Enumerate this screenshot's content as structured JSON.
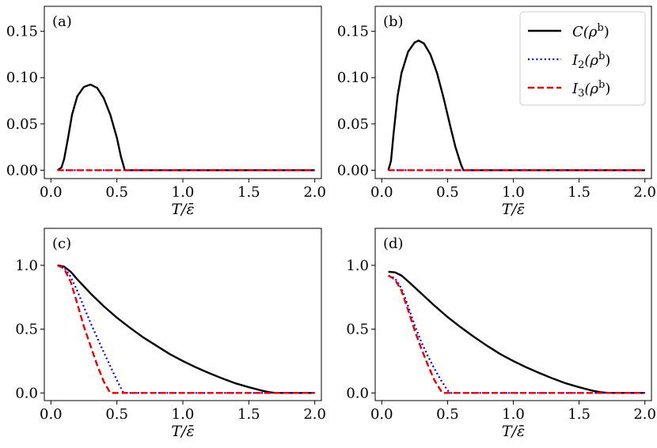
{
  "chart_data": [
    {
      "panel_label": "(a)",
      "type": "line",
      "xlabel": "T/ε̄",
      "ylabel": "",
      "xlim": [
        -0.05,
        2.05
      ],
      "ylim": [
        -0.009,
        0.177
      ],
      "xticks": [
        0.0,
        0.5,
        1.0,
        1.5,
        2.0
      ],
      "xtick_labels": [
        "0.0",
        "0.5",
        "1.0",
        "1.5",
        "2.0"
      ],
      "yticks": [
        0.0,
        0.05,
        0.1,
        0.15
      ],
      "ytick_labels": [
        "0.00",
        "0.05",
        "0.10",
        "0.15"
      ],
      "series": [
        {
          "name": "C",
          "color": "#000000",
          "style": "solid",
          "x": [
            0.05,
            0.08,
            0.1,
            0.13,
            0.16,
            0.2,
            0.25,
            0.3,
            0.35,
            0.4,
            0.45,
            0.5,
            0.53,
            0.56,
            0.6,
            1.0,
            1.5,
            2.0
          ],
          "y": [
            0.0,
            0.003,
            0.012,
            0.035,
            0.06,
            0.08,
            0.09,
            0.0925,
            0.089,
            0.078,
            0.06,
            0.035,
            0.015,
            0.0,
            0.0,
            0.0,
            0.0,
            0.0
          ]
        },
        {
          "name": "I2",
          "color": "#0000ee",
          "style": "dotted",
          "x": [
            0.05,
            2.0
          ],
          "y": [
            0.0,
            0.0
          ]
        },
        {
          "name": "I3",
          "color": "#ee0000",
          "style": "dashed",
          "x": [
            0.05,
            2.0
          ],
          "y": [
            0.0,
            0.0
          ]
        }
      ]
    },
    {
      "panel_label": "(b)",
      "type": "line",
      "xlabel": "T/ε̄",
      "ylabel": "",
      "xlim": [
        -0.05,
        2.05
      ],
      "ylim": [
        -0.009,
        0.177
      ],
      "xticks": [
        0.0,
        0.5,
        1.0,
        1.5,
        2.0
      ],
      "xtick_labels": [
        "0.0",
        "0.5",
        "1.0",
        "1.5",
        "2.0"
      ],
      "yticks": [
        0.0,
        0.05,
        0.1,
        0.15
      ],
      "ytick_labels": [
        "0.00",
        "0.05",
        "0.10",
        "0.15"
      ],
      "series": [
        {
          "name": "C",
          "color": "#000000",
          "style": "solid",
          "x": [
            0.05,
            0.07,
            0.09,
            0.12,
            0.15,
            0.2,
            0.25,
            0.28,
            0.32,
            0.37,
            0.42,
            0.47,
            0.52,
            0.56,
            0.6,
            0.62,
            1.0,
            1.5,
            2.0
          ],
          "y": [
            0.0,
            0.01,
            0.04,
            0.08,
            0.105,
            0.128,
            0.138,
            0.14,
            0.137,
            0.125,
            0.105,
            0.078,
            0.048,
            0.025,
            0.007,
            0.0,
            0.0,
            0.0,
            0.0
          ]
        },
        {
          "name": "I2",
          "color": "#0000ee",
          "style": "dotted",
          "x": [
            0.05,
            2.0
          ],
          "y": [
            0.0,
            0.0
          ]
        },
        {
          "name": "I3",
          "color": "#ee0000",
          "style": "dashed",
          "x": [
            0.05,
            2.0
          ],
          "y": [
            0.0,
            0.0
          ]
        }
      ],
      "legend": {
        "position": "top-right",
        "entries": [
          {
            "series": "C",
            "color": "#000000",
            "style": "solid",
            "main": "C",
            "sub": "",
            "arg": "(ρ",
            "sup": "b",
            "close": ")"
          },
          {
            "series": "I2",
            "color": "#0000ee",
            "style": "dotted",
            "main": "I",
            "sub": "2",
            "arg": "(ρ",
            "sup": "b",
            "close": ")"
          },
          {
            "series": "I3",
            "color": "#ee0000",
            "style": "dashed",
            "main": "I",
            "sub": "3",
            "arg": "(ρ",
            "sup": "b",
            "close": ")"
          }
        ]
      }
    },
    {
      "panel_label": "(c)",
      "type": "line",
      "xlabel": "T/ε̄",
      "ylabel": "",
      "xlim": [
        -0.05,
        2.05
      ],
      "ylim": [
        -0.06,
        1.29
      ],
      "xticks": [
        0.0,
        0.5,
        1.0,
        1.5,
        2.0
      ],
      "xtick_labels": [
        "0.0",
        "0.5",
        "1.0",
        "1.5",
        "2.0"
      ],
      "yticks": [
        0.0,
        0.5,
        1.0
      ],
      "ytick_labels": [
        "0.0",
        "0.5",
        "1.0"
      ],
      "series": [
        {
          "name": "C",
          "color": "#000000",
          "style": "solid",
          "x": [
            0.05,
            0.1,
            0.15,
            0.2,
            0.3,
            0.4,
            0.5,
            0.6,
            0.7,
            0.8,
            0.9,
            1.0,
            1.1,
            1.2,
            1.3,
            1.4,
            1.5,
            1.6,
            1.65,
            1.7,
            2.0
          ],
          "y": [
            1.0,
            0.99,
            0.95,
            0.89,
            0.78,
            0.68,
            0.59,
            0.51,
            0.435,
            0.37,
            0.305,
            0.25,
            0.2,
            0.155,
            0.113,
            0.075,
            0.045,
            0.018,
            0.007,
            0.0,
            0.0
          ]
        },
        {
          "name": "I2",
          "color": "#0000ee",
          "style": "dotted",
          "x": [
            0.05,
            0.1,
            0.15,
            0.2,
            0.3,
            0.4,
            0.5,
            0.55,
            2.0
          ],
          "y": [
            1.0,
            0.985,
            0.91,
            0.8,
            0.55,
            0.32,
            0.1,
            0.0,
            0.0
          ]
        },
        {
          "name": "I3",
          "color": "#ee0000",
          "style": "dashed",
          "x": [
            0.05,
            0.1,
            0.15,
            0.2,
            0.25,
            0.3,
            0.35,
            0.4,
            0.45,
            2.0
          ],
          "y": [
            1.0,
            0.975,
            0.87,
            0.7,
            0.52,
            0.37,
            0.22,
            0.09,
            0.0,
            0.0
          ]
        }
      ]
    },
    {
      "panel_label": "(d)",
      "type": "line",
      "xlabel": "T/ε̄",
      "ylabel": "",
      "xlim": [
        -0.05,
        2.05
      ],
      "ylim": [
        -0.06,
        1.29
      ],
      "xticks": [
        0.0,
        0.5,
        1.0,
        1.5,
        2.0
      ],
      "xtick_labels": [
        "0.0",
        "0.5",
        "1.0",
        "1.5",
        "2.0"
      ],
      "yticks": [
        0.0,
        0.5,
        1.0
      ],
      "ytick_labels": [
        "0.0",
        "0.5",
        "1.0"
      ],
      "series": [
        {
          "name": "C",
          "color": "#000000",
          "style": "solid",
          "x": [
            0.05,
            0.1,
            0.15,
            0.2,
            0.3,
            0.4,
            0.5,
            0.6,
            0.7,
            0.8,
            0.9,
            1.0,
            1.1,
            1.2,
            1.3,
            1.4,
            1.5,
            1.6,
            1.67,
            1.72,
            2.0
          ],
          "y": [
            0.95,
            0.945,
            0.92,
            0.875,
            0.78,
            0.685,
            0.595,
            0.515,
            0.44,
            0.37,
            0.305,
            0.25,
            0.2,
            0.155,
            0.113,
            0.075,
            0.045,
            0.018,
            0.005,
            0.0,
            0.0
          ]
        },
        {
          "name": "I2",
          "color": "#0000ee",
          "style": "dotted",
          "x": [
            0.05,
            0.1,
            0.15,
            0.2,
            0.25,
            0.3,
            0.35,
            0.4,
            0.45,
            0.5,
            0.52,
            2.0
          ],
          "y": [
            0.92,
            0.9,
            0.82,
            0.68,
            0.53,
            0.4,
            0.29,
            0.19,
            0.1,
            0.02,
            0.0,
            0.0
          ]
        },
        {
          "name": "I3",
          "color": "#ee0000",
          "style": "dashed",
          "x": [
            0.05,
            0.1,
            0.15,
            0.2,
            0.25,
            0.3,
            0.35,
            0.4,
            0.46,
            2.0
          ],
          "y": [
            0.92,
            0.89,
            0.8,
            0.65,
            0.49,
            0.35,
            0.22,
            0.1,
            0.0,
            0.0
          ]
        }
      ]
    }
  ]
}
